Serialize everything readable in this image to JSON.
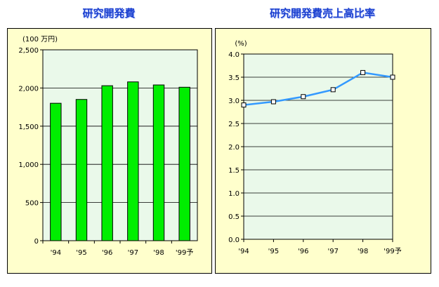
{
  "chart_data": [
    {
      "type": "bar",
      "title": "研究開発費",
      "unit_label": "(100 万円)",
      "categories": [
        "'94",
        "'95",
        "'96",
        "'97",
        "'98",
        "'99予"
      ],
      "values": [
        1800,
        1850,
        2030,
        2080,
        2040,
        2010
      ],
      "ylim": [
        0,
        2500
      ],
      "yticks": [
        "0",
        "500",
        "1,000",
        "1,500",
        "2,000",
        "2,500"
      ],
      "ytick_values": [
        0,
        500,
        1000,
        1500,
        2000,
        2500
      ],
      "grid": true,
      "colors": {
        "bar": "#00ee00",
        "plot_bg": "#eaf9ea",
        "panel_bg": "#ffffcc"
      }
    },
    {
      "type": "line",
      "title": "研究開発費売上高比率",
      "unit_label": "(%)",
      "categories": [
        "'94",
        "'95",
        "'96",
        "'97",
        "'98",
        "'99予"
      ],
      "values": [
        2.9,
        2.97,
        3.08,
        3.23,
        3.6,
        3.5
      ],
      "ylim": [
        0,
        4
      ],
      "yticks": [
        "0.0",
        "0.5",
        "1.0",
        "1.5",
        "2.0",
        "2.5",
        "3.0",
        "3.5",
        "4.0"
      ],
      "ytick_values": [
        0,
        0.5,
        1,
        1.5,
        2,
        2.5,
        3,
        3.5,
        4
      ],
      "grid": true,
      "colors": {
        "line": "#3399ff",
        "plot_bg": "#eaf9ea",
        "panel_bg": "#ffffcc"
      }
    }
  ]
}
